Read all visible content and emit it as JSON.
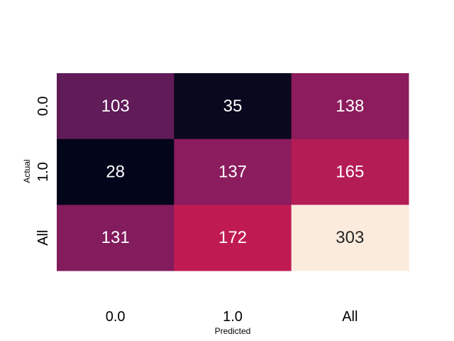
{
  "chart_data": {
    "type": "heatmap",
    "title": "",
    "xlabel": "Predicted",
    "ylabel": "Actual",
    "x_categories": [
      "0.0",
      "1.0",
      "All"
    ],
    "y_categories": [
      "0.0",
      "1.0",
      "All"
    ],
    "values": [
      [
        103,
        35,
        138
      ],
      [
        28,
        137,
        165
      ],
      [
        131,
        172,
        303
      ]
    ],
    "colorbar": false,
    "grid": false,
    "colors": {
      "text_light": "#ffffff",
      "text_dark": "#262626"
    }
  }
}
